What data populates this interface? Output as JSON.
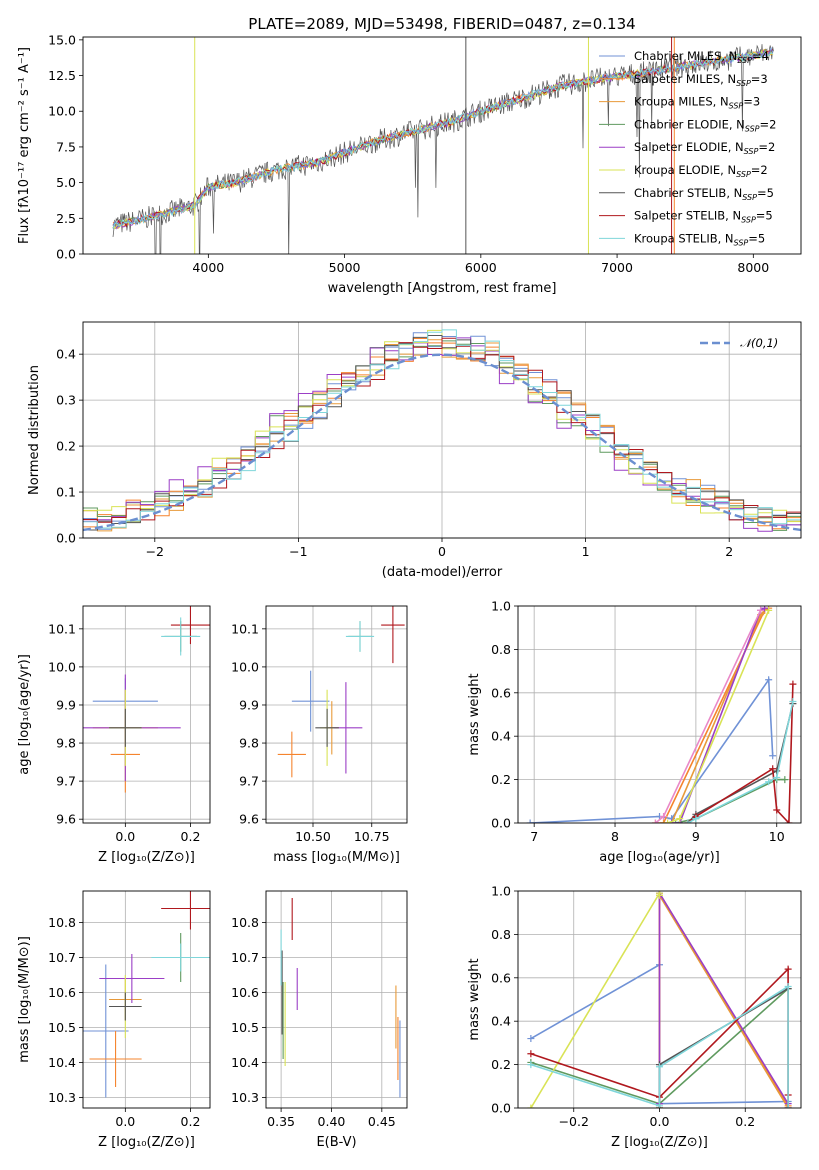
{
  "colors": {
    "series": [
      "#7092d6",
      "#f5842e",
      "#e89a3a",
      "#5f9a5f",
      "#9b3fc6",
      "#d9e356",
      "#555555",
      "#b0181e",
      "#7fd6da"
    ],
    "extra_pink": "#e988c8",
    "extra_green": "#b6d65a",
    "normal_line": "#6b8fd0"
  },
  "chart_data": [
    {
      "id": "spectrum",
      "type": "line",
      "title": "PLATE=2089, MJD=53498, FIBERID=0487, z=0.134",
      "xlabel": "wavelength [Angstrom, rest frame]",
      "ylabel": "Flux [fλ10⁻¹⁷ erg cm⁻² s⁻¹ A⁻¹]",
      "xlim": [
        3080,
        8350
      ],
      "ylim": [
        0,
        15.2
      ],
      "xticks": [
        4000,
        5000,
        6000,
        7000,
        8000
      ],
      "yticks": [
        0.0,
        2.5,
        5.0,
        7.5,
        10.0,
        12.5,
        15.0
      ],
      "grid": false,
      "legend": "top-right",
      "series": [
        {
          "name": "Chabrier MILES, N_SSP=4",
          "x": [
            3300,
            3500,
            3700,
            3900,
            4000,
            4200,
            4500,
            4800,
            5000,
            5200,
            5500,
            5800,
            6000,
            6300,
            6600,
            6900,
            7200,
            7500,
            7800,
            8000,
            8150
          ],
          "y": [
            2.0,
            2.4,
            2.9,
            3.4,
            4.7,
            5.0,
            5.9,
            6.4,
            7.1,
            7.8,
            8.6,
            9.3,
            10.0,
            10.9,
            11.8,
            12.3,
            12.7,
            13.2,
            13.6,
            13.9,
            14.2
          ]
        },
        {
          "name": "Salpeter MILES, N_SSP=3",
          "x": [
            3300,
            3500,
            3700,
            3900,
            4000,
            4200,
            4500,
            4800,
            5000,
            5200,
            5500,
            5800,
            6000,
            6300,
            6600,
            6900,
            7200,
            7500,
            7800,
            8000,
            8150
          ],
          "y": [
            2.0,
            2.4,
            2.9,
            3.4,
            4.7,
            5.0,
            5.9,
            6.4,
            7.1,
            7.8,
            8.6,
            9.3,
            10.0,
            10.9,
            11.8,
            12.3,
            12.7,
            13.2,
            13.6,
            13.9,
            14.2
          ]
        },
        {
          "name": "Kroupa MILES, N_SSP=3",
          "x": [
            3300,
            3500,
            3700,
            3900,
            4000,
            4200,
            4500,
            4800,
            5000,
            5200,
            5500,
            5800,
            6000,
            6300,
            6600,
            6900,
            7200,
            7500,
            7800,
            8000,
            8150
          ],
          "y": [
            2.0,
            2.4,
            2.9,
            3.4,
            4.7,
            5.0,
            5.9,
            6.4,
            7.1,
            7.8,
            8.6,
            9.3,
            10.0,
            10.9,
            11.8,
            12.3,
            12.7,
            13.2,
            13.6,
            13.9,
            14.2
          ]
        },
        {
          "name": "Chabrier ELODIE, N_SSP=2",
          "x": [
            3300,
            3500,
            3700,
            3900,
            4000,
            4200,
            4500,
            4800,
            5000,
            5200,
            5500,
            5800,
            6000,
            6300,
            6600,
            6900,
            7200,
            7500,
            7800,
            8000,
            8150
          ],
          "y": [
            2.0,
            2.4,
            2.9,
            3.4,
            4.7,
            5.0,
            5.9,
            6.4,
            7.1,
            7.8,
            8.6,
            9.3,
            10.0,
            10.9,
            11.8,
            12.3,
            12.7,
            13.2,
            13.6,
            13.9,
            14.2
          ]
        },
        {
          "name": "Salpeter ELODIE, N_SSP=2",
          "x": [
            3300,
            3500,
            3700,
            3900,
            4000,
            4200,
            4500,
            4800,
            5000,
            5200,
            5500,
            5800,
            6000,
            6300,
            6600,
            6900,
            7200,
            7500,
            7800,
            8000,
            8150
          ],
          "y": [
            2.0,
            2.4,
            2.9,
            3.4,
            4.7,
            5.0,
            5.9,
            6.4,
            7.1,
            7.8,
            8.6,
            9.3,
            10.0,
            10.9,
            11.8,
            12.3,
            12.7,
            13.2,
            13.6,
            13.9,
            14.2
          ]
        },
        {
          "name": "Kroupa ELODIE, N_SSP=2",
          "x": [
            3300,
            3500,
            3700,
            3900,
            4000,
            4200,
            4500,
            4800,
            5000,
            5200,
            5500,
            5800,
            6000,
            6300,
            6600,
            6900,
            7200,
            7500,
            7800,
            8000,
            8150
          ],
          "y": [
            2.0,
            2.4,
            2.9,
            3.4,
            4.7,
            5.0,
            5.9,
            6.4,
            7.1,
            7.8,
            8.6,
            9.3,
            10.0,
            10.9,
            11.8,
            12.3,
            12.7,
            13.2,
            13.6,
            13.9,
            14.2
          ]
        },
        {
          "name": "Chabrier STELIB, N_SSP=5",
          "x": [
            3300,
            3500,
            3700,
            3900,
            4000,
            4200,
            4500,
            4800,
            5000,
            5200,
            5500,
            5800,
            6000,
            6300,
            6600,
            6900,
            7200,
            7500,
            7800,
            8000,
            8150
          ],
          "y": [
            2.0,
            2.4,
            2.9,
            3.4,
            4.7,
            5.0,
            5.9,
            6.4,
            7.1,
            7.8,
            8.6,
            9.3,
            10.0,
            10.9,
            11.8,
            12.3,
            12.7,
            13.2,
            13.6,
            13.9,
            14.2
          ]
        },
        {
          "name": "Salpeter STELIB, N_SSP=5",
          "x": [
            3300,
            3500,
            3700,
            3900,
            4000,
            4200,
            4500,
            4800,
            5000,
            5200,
            5500,
            5800,
            6000,
            6300,
            6600,
            6900,
            7200,
            7500,
            7800,
            8000,
            8150
          ],
          "y": [
            2.0,
            2.4,
            2.9,
            3.4,
            4.7,
            5.0,
            5.9,
            6.4,
            7.1,
            7.8,
            8.6,
            9.3,
            10.0,
            10.9,
            11.8,
            12.3,
            12.7,
            13.2,
            13.6,
            13.9,
            14.2
          ]
        },
        {
          "name": "Kroupa STELIB, N_SSP=5",
          "x": [
            3300,
            3500,
            3700,
            3900,
            4000,
            4200,
            4500,
            4800,
            5000,
            5200,
            5500,
            5800,
            6000,
            6300,
            6600,
            6900,
            7200,
            7500,
            7800,
            8000,
            8150
          ],
          "y": [
            2.0,
            2.4,
            2.9,
            3.4,
            4.7,
            5.0,
            5.9,
            6.4,
            7.1,
            7.8,
            8.6,
            9.3,
            10.0,
            10.9,
            11.8,
            12.3,
            12.7,
            13.2,
            13.6,
            13.9,
            14.2
          ]
        }
      ]
    },
    {
      "id": "residuals",
      "type": "line",
      "xlabel": "(data-model)/error",
      "ylabel": "Normed distribution",
      "xlim": [
        -2.5,
        2.5
      ],
      "ylim": [
        0,
        0.47
      ],
      "xticks": [
        -2,
        -1,
        0,
        1,
        2
      ],
      "yticks": [
        0.0,
        0.1,
        0.2,
        0.3,
        0.4
      ],
      "grid": true,
      "legend": "top-right",
      "normal_label": "𝒩(0,1)"
    },
    {
      "id": "age_vs_Z",
      "type": "scatter",
      "xlabel": "Z [log₁₀(Z/Z⊙)]",
      "ylabel": "age  [log₁₀(age/yr)]",
      "xlim": [
        -0.13,
        0.26
      ],
      "ylim": [
        9.59,
        10.16
      ],
      "xticks": [
        0.0,
        0.2
      ],
      "yticks": [
        9.6,
        9.7,
        9.8,
        9.9,
        10.0,
        10.1
      ],
      "grid": true,
      "points": [
        {
          "x": 0.0,
          "y": 9.91,
          "xerr": 0.1,
          "yerr": 0.06
        },
        {
          "x": 0.0,
          "y": 9.77,
          "xerr": 0.045,
          "yerr": 0.1
        },
        {
          "x": 0.0,
          "y": 9.84,
          "xerr": 0.1,
          "yerr": 0.1
        },
        {
          "x": 0.17,
          "y": 10.08,
          "xerr": 0.05,
          "yerr": 0.04
        },
        {
          "x": 0.0,
          "y": 9.84,
          "xerr": 0.17,
          "yerr": 0.14
        },
        {
          "x": 0.0,
          "y": 9.84,
          "xerr": 0.05,
          "yerr": 0.1
        },
        {
          "x": 0.0,
          "y": 9.84,
          "xerr": 0.05,
          "yerr": 0.05
        },
        {
          "x": 0.2,
          "y": 10.11,
          "xerr": 0.06,
          "yerr": 0.05
        },
        {
          "x": 0.17,
          "y": 10.08,
          "xerr": 0.06,
          "yerr": 0.05
        }
      ]
    },
    {
      "id": "age_vs_mass",
      "type": "scatter",
      "xlabel": "mass [log₁₀(M/M⊙)]",
      "ylabel": "",
      "xlim": [
        10.3,
        10.9
      ],
      "ylim": [
        9.59,
        10.16
      ],
      "xticks": [
        10.5,
        10.75
      ],
      "yticks": [
        9.6,
        9.7,
        9.8,
        9.9,
        10.0,
        10.1
      ],
      "grid": true,
      "points": [
        {
          "x": 10.49,
          "y": 9.91,
          "xerr": 0.08,
          "yerr": 0.08
        },
        {
          "x": 10.41,
          "y": 9.77,
          "xerr": 0.06,
          "yerr": 0.06
        },
        {
          "x": 10.58,
          "y": 9.84,
          "xerr": 0.03,
          "yerr": 0.07
        },
        {
          "x": 10.7,
          "y": 10.08,
          "xerr": 0.05,
          "yerr": 0.04
        },
        {
          "x": 10.64,
          "y": 9.84,
          "xerr": 0.07,
          "yerr": 0.12
        },
        {
          "x": 10.56,
          "y": 9.84,
          "xerr": 0.03,
          "yerr": 0.1
        },
        {
          "x": 10.56,
          "y": 9.84,
          "xerr": 0.05,
          "yerr": 0.05
        },
        {
          "x": 10.84,
          "y": 10.11,
          "xerr": 0.05,
          "yerr": 0.1
        },
        {
          "x": 10.7,
          "y": 10.08,
          "xerr": 0.06,
          "yerr": 0.04
        }
      ]
    },
    {
      "id": "weight_vs_age",
      "type": "line",
      "xlabel": "age  [log₁₀(age/yr)]",
      "ylabel": "mass weight",
      "xlim": [
        6.8,
        10.3
      ],
      "ylim": [
        0,
        1.0
      ],
      "xticks": [
        7,
        8,
        9,
        10
      ],
      "yticks": [
        0.0,
        0.2,
        0.4,
        0.6,
        0.8,
        1.0
      ],
      "grid": true,
      "series": [
        {
          "x": [
            6.95,
            8.55,
            8.7,
            9.9,
            9.95
          ],
          "y": [
            0.0,
            0.03,
            0.02,
            0.66,
            0.31
          ]
        },
        {
          "x": [
            8.5,
            8.6,
            9.85,
            9.9
          ],
          "y": [
            0.0,
            0.0,
            0.98,
            0.99
          ]
        },
        {
          "x": [
            8.6,
            8.7,
            9.8,
            9.85
          ],
          "y": [
            0.0,
            0.0,
            0.96,
            0.98
          ]
        },
        {
          "x": [
            8.75,
            9.0,
            10.0,
            10.1
          ],
          "y": [
            0.0,
            0.02,
            0.2,
            0.2
          ]
        },
        {
          "x": [
            8.7,
            8.8,
            9.8,
            9.85
          ],
          "y": [
            0.0,
            0.0,
            0.98,
            0.99
          ]
        },
        {
          "x": [
            8.65,
            8.8,
            9.9
          ],
          "y": [
            0.0,
            0.02,
            0.98
          ]
        },
        {
          "x": [
            8.9,
            9.0,
            10.0,
            10.2
          ],
          "y": [
            0.0,
            0.04,
            0.24,
            0.55
          ]
        },
        {
          "x": [
            8.9,
            9.0,
            9.95,
            10.0,
            10.15,
            10.2
          ],
          "y": [
            0.0,
            0.03,
            0.25,
            0.06,
            0.0,
            0.64
          ]
        },
        {
          "x": [
            8.9,
            9.0,
            9.9,
            10.0,
            10.2
          ],
          "y": [
            0.0,
            0.02,
            0.19,
            0.21,
            0.56
          ]
        },
        {
          "x": [
            8.5,
            8.6,
            9.8
          ],
          "y": [
            0.0,
            0.03,
            0.98
          ]
        }
      ]
    },
    {
      "id": "mass_vs_Z",
      "type": "scatter",
      "xlabel": "Z [log₁₀(Z/Z⊙)]",
      "ylabel": "mass [log₁₀(M/M⊙)]",
      "xlim": [
        -0.13,
        0.26
      ],
      "ylim": [
        10.27,
        10.89
      ],
      "xticks": [
        0.0,
        0.2
      ],
      "yticks": [
        10.3,
        10.4,
        10.5,
        10.6,
        10.7,
        10.8
      ],
      "grid": true,
      "points": [
        {
          "x": -0.06,
          "y": 10.49,
          "xerr": 0.07,
          "yerr": 0.19
        },
        {
          "x": -0.03,
          "y": 10.41,
          "xerr": 0.08,
          "yerr": 0.08
        },
        {
          "x": 0.0,
          "y": 10.58,
          "xerr": 0.05,
          "yerr": 0.06
        },
        {
          "x": 0.17,
          "y": 10.7,
          "xerr": 0.06,
          "yerr": 0.07
        },
        {
          "x": 0.02,
          "y": 10.64,
          "xerr": 0.1,
          "yerr": 0.07
        },
        {
          "x": 0.0,
          "y": 10.56,
          "xerr": 0.05,
          "yerr": 0.09
        },
        {
          "x": 0.0,
          "y": 10.56,
          "xerr": 0.05,
          "yerr": 0.04
        },
        {
          "x": 0.2,
          "y": 10.84,
          "xerr": 0.09,
          "yerr": 0.06
        },
        {
          "x": 0.17,
          "y": 10.7,
          "xerr": 0.09,
          "yerr": 0.04
        }
      ]
    },
    {
      "id": "mass_vs_ebv",
      "type": "scatter",
      "xlabel": "E(B-V)",
      "ylabel": "",
      "xlim": [
        0.335,
        0.475
      ],
      "ylim": [
        10.27,
        10.89
      ],
      "xticks": [
        0.35,
        0.4,
        0.45
      ],
      "yticks": [
        10.3,
        10.4,
        10.5,
        10.6,
        10.7,
        10.8
      ],
      "grid": true,
      "points": [
        {
          "x": 0.468,
          "y": 10.41,
          "xerr": 0.0,
          "yerr": 0.11
        },
        {
          "x": 0.466,
          "y": 10.44,
          "xerr": 0.0,
          "yerr": 0.09
        },
        {
          "x": 0.464,
          "y": 10.53,
          "xerr": 0.0,
          "yerr": 0.09
        },
        {
          "x": 0.352,
          "y": 10.52,
          "xerr": 0.0,
          "yerr": 0.11
        },
        {
          "x": 0.366,
          "y": 10.61,
          "xerr": 0.0,
          "yerr": 0.06
        },
        {
          "x": 0.354,
          "y": 10.51,
          "xerr": 0.0,
          "yerr": 0.12
        },
        {
          "x": 0.351,
          "y": 10.6,
          "xerr": 0.0,
          "yerr": 0.12
        },
        {
          "x": 0.361,
          "y": 10.81,
          "xerr": 0.0,
          "yerr": 0.06
        },
        {
          "x": 0.35,
          "y": 10.7,
          "xerr": 0.0,
          "yerr": 0.08
        }
      ]
    },
    {
      "id": "weight_vs_Z",
      "type": "line",
      "xlabel": "Z [log₁₀(Z/Z⊙)]",
      "ylabel": "mass weight",
      "xlim": [
        -0.33,
        0.33
      ],
      "ylim": [
        0,
        1.0
      ],
      "xticks": [
        -0.2,
        0.0,
        0.2
      ],
      "yticks": [
        0.0,
        0.2,
        0.4,
        0.6,
        0.8,
        1.0
      ],
      "grid": true,
      "series": [
        {
          "x": [
            -0.3,
            0.0,
            0.0,
            0.3
          ],
          "y": [
            0.32,
            0.66,
            0.02,
            0.03
          ]
        },
        {
          "x": [
            0.0,
            0.0,
            0.3
          ],
          "y": [
            0.0,
            0.99,
            0.01
          ]
        },
        {
          "x": [
            0.0,
            0.0,
            0.3
          ],
          "y": [
            0.0,
            0.98,
            0.0
          ]
        },
        {
          "x": [
            -0.3,
            0.0,
            0.3
          ],
          "y": [
            0.21,
            0.02,
            0.55
          ]
        },
        {
          "x": [
            0.0,
            0.0,
            0.3,
            0.3
          ],
          "y": [
            0.02,
            0.99,
            0.02,
            0.0
          ]
        },
        {
          "x": [
            -0.3,
            0.0,
            0.0
          ],
          "y": [
            0.0,
            0.99,
            0.98
          ]
        },
        {
          "x": [
            0.0,
            0.0,
            0.3
          ],
          "y": [
            0.0,
            0.2,
            0.55
          ]
        },
        {
          "x": [
            -0.3,
            0.0,
            0.3,
            0.3,
            0.3
          ],
          "y": [
            0.25,
            0.05,
            0.64,
            0.06,
            0.0
          ]
        },
        {
          "x": [
            -0.3,
            0.0,
            0.0,
            0.3,
            0.3
          ],
          "y": [
            0.2,
            0.01,
            0.19,
            0.56,
            0.0
          ]
        }
      ]
    }
  ]
}
